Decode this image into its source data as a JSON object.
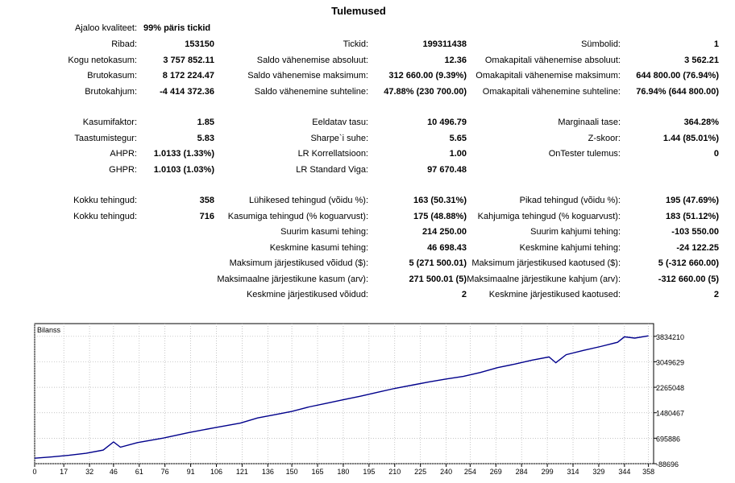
{
  "title": "Tulemused",
  "quality": {
    "label": "Ajaloo kvaliteet:",
    "value": "99% päris tickid"
  },
  "rows": [
    {
      "y": 48,
      "cells": [
        {
          "label": "Ribad:",
          "value": "153150"
        },
        {
          "label": "Tickid:",
          "value": "199311438"
        },
        {
          "label": "Sümbolid:",
          "value": "1"
        }
      ]
    },
    {
      "y": 68,
      "cells": [
        {
          "label": "Kogu netokasum:",
          "value": "3 757 852.11"
        },
        {
          "label": "Saldo vähenemise absoluut:",
          "value": "12.36"
        },
        {
          "label": "Omakapitali vähenemise absoluut:",
          "value": "3 562.21"
        }
      ]
    },
    {
      "y": 87,
      "cells": [
        {
          "label": "Brutokasum:",
          "value": "8 172 224.47"
        },
        {
          "label": "Saldo vähenemise maksimum:",
          "value": "312 660.00 (9.39%)"
        },
        {
          "label": "Omakapitali vähenemise maksimum:",
          "value": "644 800.00 (76.94%)"
        }
      ]
    },
    {
      "y": 107,
      "cells": [
        {
          "label": "Brutokahjum:",
          "value": "-4 414 372.36"
        },
        {
          "label": "Saldo vähenemine suhteline:",
          "value": "47.88% (230 700.00)"
        },
        {
          "label": "Omakapitali vähenemine suhteline:",
          "value": "76.94% (644 800.00)"
        }
      ]
    },
    {
      "y": 145,
      "cells": [
        {
          "label": "Kasumifaktor:",
          "value": "1.85"
        },
        {
          "label": "Eeldatav tasu:",
          "value": "10 496.79"
        },
        {
          "label": "Marginaali tase:",
          "value": "364.28%"
        }
      ]
    },
    {
      "y": 165,
      "cells": [
        {
          "label": "Taastumistegur:",
          "value": "5.83"
        },
        {
          "label": "Sharpe`i suhe:",
          "value": "5.65"
        },
        {
          "label": "Z-skoor:",
          "value": "1.44 (85.01%)"
        }
      ]
    },
    {
      "y": 184,
      "cells": [
        {
          "label": "AHPR:",
          "value": "1.0133 (1.33%)"
        },
        {
          "label": "LR Korrellatsioon:",
          "value": "1.00"
        },
        {
          "label": "OnTester tulemus:",
          "value": "0"
        }
      ]
    },
    {
      "y": 204,
      "cells": [
        {
          "label": "GHPR:",
          "value": "1.0103 (1.03%)"
        },
        {
          "label": "LR Standard Viga:",
          "value": "97 670.48"
        },
        null
      ]
    },
    {
      "y": 242,
      "cells": [
        {
          "label": "Kokku tehingud:",
          "value": "358"
        },
        {
          "label": "Lühikesed tehingud (võidu %):",
          "value": "163 (50.31%)"
        },
        {
          "label": "Pikad tehingud (võidu %):",
          "value": "195 (47.69%)"
        }
      ]
    },
    {
      "y": 262,
      "cells": [
        {
          "label": "Kokku tehingud:",
          "value": "716"
        },
        {
          "label": "Kasumiga tehingud (% koguarvust):",
          "value": "175 (48.88%)"
        },
        {
          "label": "Kahjumiga tehingud (% koguarvust):",
          "value": "183 (51.12%)"
        }
      ]
    },
    {
      "y": 281,
      "cells": [
        null,
        {
          "label": "Suurim kasumi tehing:",
          "value": "214 250.00"
        },
        {
          "label": "Suurim kahjumi tehing:",
          "value": "-103 550.00"
        }
      ]
    },
    {
      "y": 301,
      "cells": [
        null,
        {
          "label": "Keskmine kasumi tehing:",
          "value": "46 698.43"
        },
        {
          "label": "Keskmine kahjumi tehing:",
          "value": "-24 122.25"
        }
      ]
    },
    {
      "y": 320,
      "cells": [
        null,
        {
          "label": "Maksimum järjestikused võidud ($):",
          "value": "5 (271 500.01)"
        },
        {
          "label": "Maksimum järjestikused kaotused ($):",
          "value": "5 (-312 660.00)"
        }
      ]
    },
    {
      "y": 340,
      "cells": [
        null,
        {
          "label": "Maksimaalne järjestikune kasum (arv):",
          "value": "271 500.01 (5)"
        },
        {
          "label": "Maksimaalne järjestikune kahjum (arv):",
          "value": "-312 660.00 (5)"
        }
      ]
    },
    {
      "y": 359,
      "cells": [
        null,
        {
          "label": "Keskmine järjestikused võidud:",
          "value": "2"
        },
        {
          "label": "Keskmine järjestikused kaotused:",
          "value": "2"
        }
      ]
    }
  ],
  "chart_data": {
    "type": "line",
    "title": "Bilanss",
    "line_color": "#00008b",
    "grid": true,
    "xlim": [
      0,
      361
    ],
    "ylim": [
      -88696,
      4226502
    ],
    "x_ticks": [
      0,
      17,
      32,
      46,
      61,
      76,
      91,
      106,
      121,
      136,
      150,
      165,
      180,
      195,
      210,
      225,
      240,
      254,
      269,
      284,
      299,
      314,
      329,
      344,
      358
    ],
    "y_ticks": [
      -88696,
      695886,
      1480467,
      2265048,
      3049629,
      3834210
    ],
    "series": [
      {
        "x": [
          0,
          10,
          20,
          30,
          40,
          46,
          50,
          60,
          75,
          90,
          105,
          120,
          130,
          140,
          150,
          160,
          170,
          180,
          190,
          200,
          210,
          220,
          230,
          240,
          250,
          260,
          270,
          280,
          290,
          300,
          304,
          310,
          320,
          330,
          340,
          344,
          350,
          358
        ],
        "y": [
          80000,
          120000,
          170000,
          230000,
          330000,
          580000,
          420000,
          560000,
          700000,
          870000,
          1020000,
          1160000,
          1320000,
          1420000,
          1520000,
          1660000,
          1770000,
          1880000,
          1990000,
          2110000,
          2230000,
          2330000,
          2430000,
          2520000,
          2600000,
          2720000,
          2870000,
          2980000,
          3100000,
          3200000,
          3020000,
          3270000,
          3400000,
          3520000,
          3650000,
          3820000,
          3780000,
          3850000
        ]
      }
    ]
  }
}
